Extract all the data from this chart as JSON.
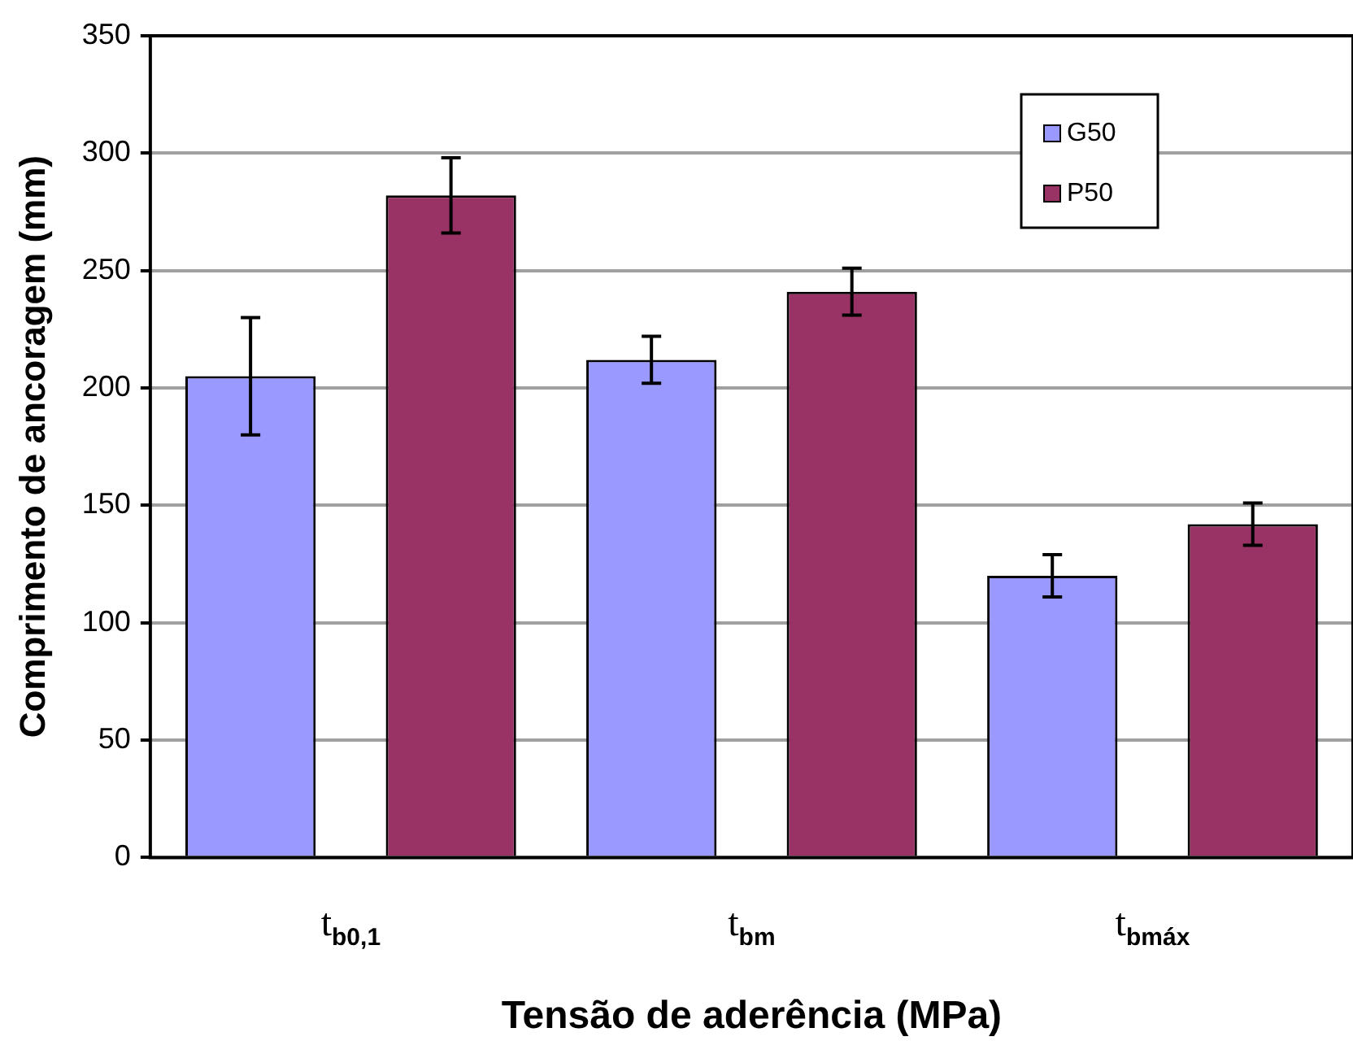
{
  "chart_data": {
    "type": "bar",
    "xlabel": "Tensão de aderência (MPa)",
    "ylabel": "Comprimento de ancoragem (mm)",
    "categories": [
      "t$_{b0,1}$",
      "t$_{bm}$",
      "t$_{bmáx}$"
    ],
    "series": [
      {
        "name": "G50",
        "color": "#9999ff",
        "values": [
          205,
          212,
          120
        ],
        "errors": [
          25,
          10,
          9
        ]
      },
      {
        "name": "P50",
        "color": "#993366",
        "values": [
          282,
          241,
          142
        ],
        "errors": [
          16,
          10,
          9
        ]
      }
    ],
    "ylim": [
      0,
      350
    ],
    "yticks": [
      0,
      50,
      100,
      150,
      200,
      250,
      300,
      350
    ],
    "grid": "y",
    "legend": "top right"
  }
}
